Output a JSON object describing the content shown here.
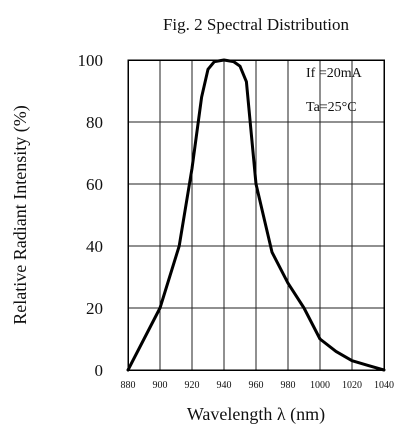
{
  "chart_data": {
    "type": "line",
    "title": "Fig. 2 Spectral Distribution",
    "xlabel": "Wavelength λ (nm)",
    "ylabel": "Relative Radiant Intensity (%)",
    "xlim": [
      880,
      1040
    ],
    "ylim": [
      0,
      100
    ],
    "x_ticks": [
      "880",
      "900",
      "920",
      "940",
      "960",
      "980",
      "1000",
      "1020",
      "1040"
    ],
    "y_ticks": [
      "0",
      "20",
      "40",
      "60",
      "80",
      "100"
    ],
    "grid": true,
    "conditions": [
      "If =20mA",
      "Ta=25°C"
    ],
    "series": [
      {
        "x": [
          880,
          900,
          912,
          920,
          926,
          930,
          934,
          940,
          946,
          950,
          954,
          960,
          970,
          980,
          990,
          1000,
          1010,
          1020,
          1030,
          1040
        ],
        "y": [
          0,
          20,
          40,
          65,
          88,
          97,
          99.5,
          100,
          99.5,
          98,
          93,
          60,
          38,
          28,
          20,
          10,
          6,
          3,
          1.5,
          0
        ]
      }
    ]
  }
}
